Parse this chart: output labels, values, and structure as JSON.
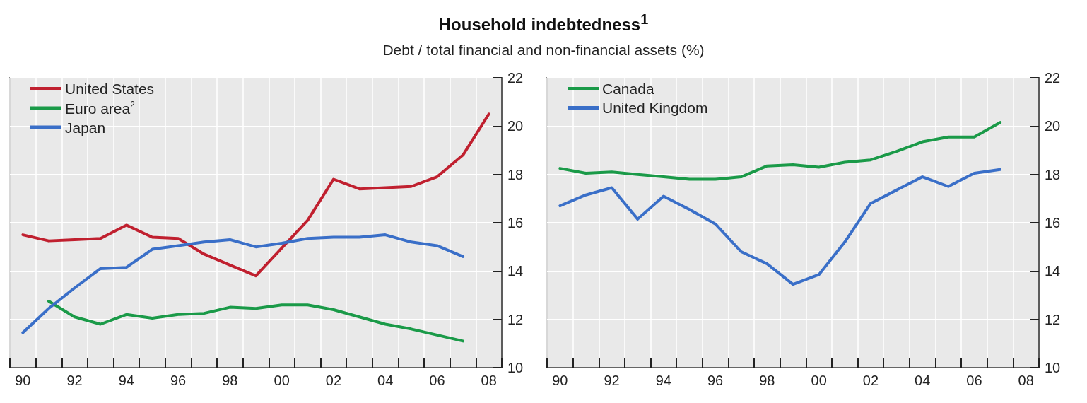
{
  "chart_data": [
    {
      "type": "line",
      "title": "Household indebtedness$^{1}$",
      "subtitle": "Debt / total financial and non-financial assets (%)",
      "legend": "top left",
      "grid": true,
      "line_style": "solid",
      "marker": "none",
      "categories": [
        "90",
        null,
        "92",
        null,
        "94",
        null,
        "96",
        null,
        "98",
        null,
        "00",
        null,
        "02",
        null,
        "04",
        null,
        "06",
        null,
        "08"
      ],
      "ylim": [
        10,
        22
      ],
      "yticks": [
        10,
        12,
        14,
        16,
        18,
        20,
        22
      ],
      "series": [
        {
          "name": "United States",
          "color": "#c0202f",
          "values": [
            15.5,
            15.25,
            15.3,
            15.35,
            15.9,
            15.4,
            15.35,
            14.7,
            14.25,
            13.8,
            14.95,
            16.1,
            17.8,
            17.4,
            17.45,
            17.5,
            17.9,
            18.8,
            20.5
          ]
        },
        {
          "name": "Euro area$^{2}$",
          "color": "#1a9a48",
          "values": [
            null,
            12.75,
            12.1,
            11.8,
            12.2,
            12.05,
            12.2,
            12.25,
            12.5,
            12.45,
            12.6,
            12.6,
            12.4,
            12.1,
            11.8,
            11.6,
            11.35,
            11.1,
            null
          ]
        },
        {
          "name": "Japan",
          "color": "#3a6fc8",
          "values": [
            11.45,
            12.45,
            13.3,
            14.1,
            14.15,
            14.9,
            15.05,
            15.2,
            15.3,
            15.0,
            15.15,
            15.35,
            15.4,
            15.4,
            15.5,
            15.2,
            15.05,
            14.6,
            null
          ]
        }
      ]
    },
    {
      "type": "line",
      "legend": "top left",
      "grid": true,
      "line_style": "solid",
      "marker": "none",
      "categories": [
        "90",
        null,
        "92",
        null,
        "94",
        null,
        "96",
        null,
        "98",
        null,
        "00",
        null,
        "02",
        null,
        "04",
        null,
        "06",
        null,
        "08"
      ],
      "ylim": [
        10,
        22
      ],
      "yticks": [
        10,
        12,
        14,
        16,
        18,
        20,
        22
      ],
      "series": [
        {
          "name": "Canada",
          "color": "#1a9a48",
          "values": [
            18.25,
            18.05,
            18.1,
            18.0,
            17.9,
            17.8,
            17.8,
            17.9,
            18.35,
            18.4,
            18.3,
            18.5,
            18.6,
            18.95,
            19.35,
            19.55,
            19.55,
            20.15,
            null
          ]
        },
        {
          "name": "United Kingdom",
          "color": "#3a6fc8",
          "values": [
            16.7,
            17.15,
            17.45,
            16.15,
            17.1,
            16.55,
            15.95,
            14.8,
            14.3,
            13.45,
            13.85,
            15.2,
            16.8,
            17.35,
            17.9,
            17.5,
            18.05,
            18.2,
            null
          ]
        }
      ]
    }
  ]
}
